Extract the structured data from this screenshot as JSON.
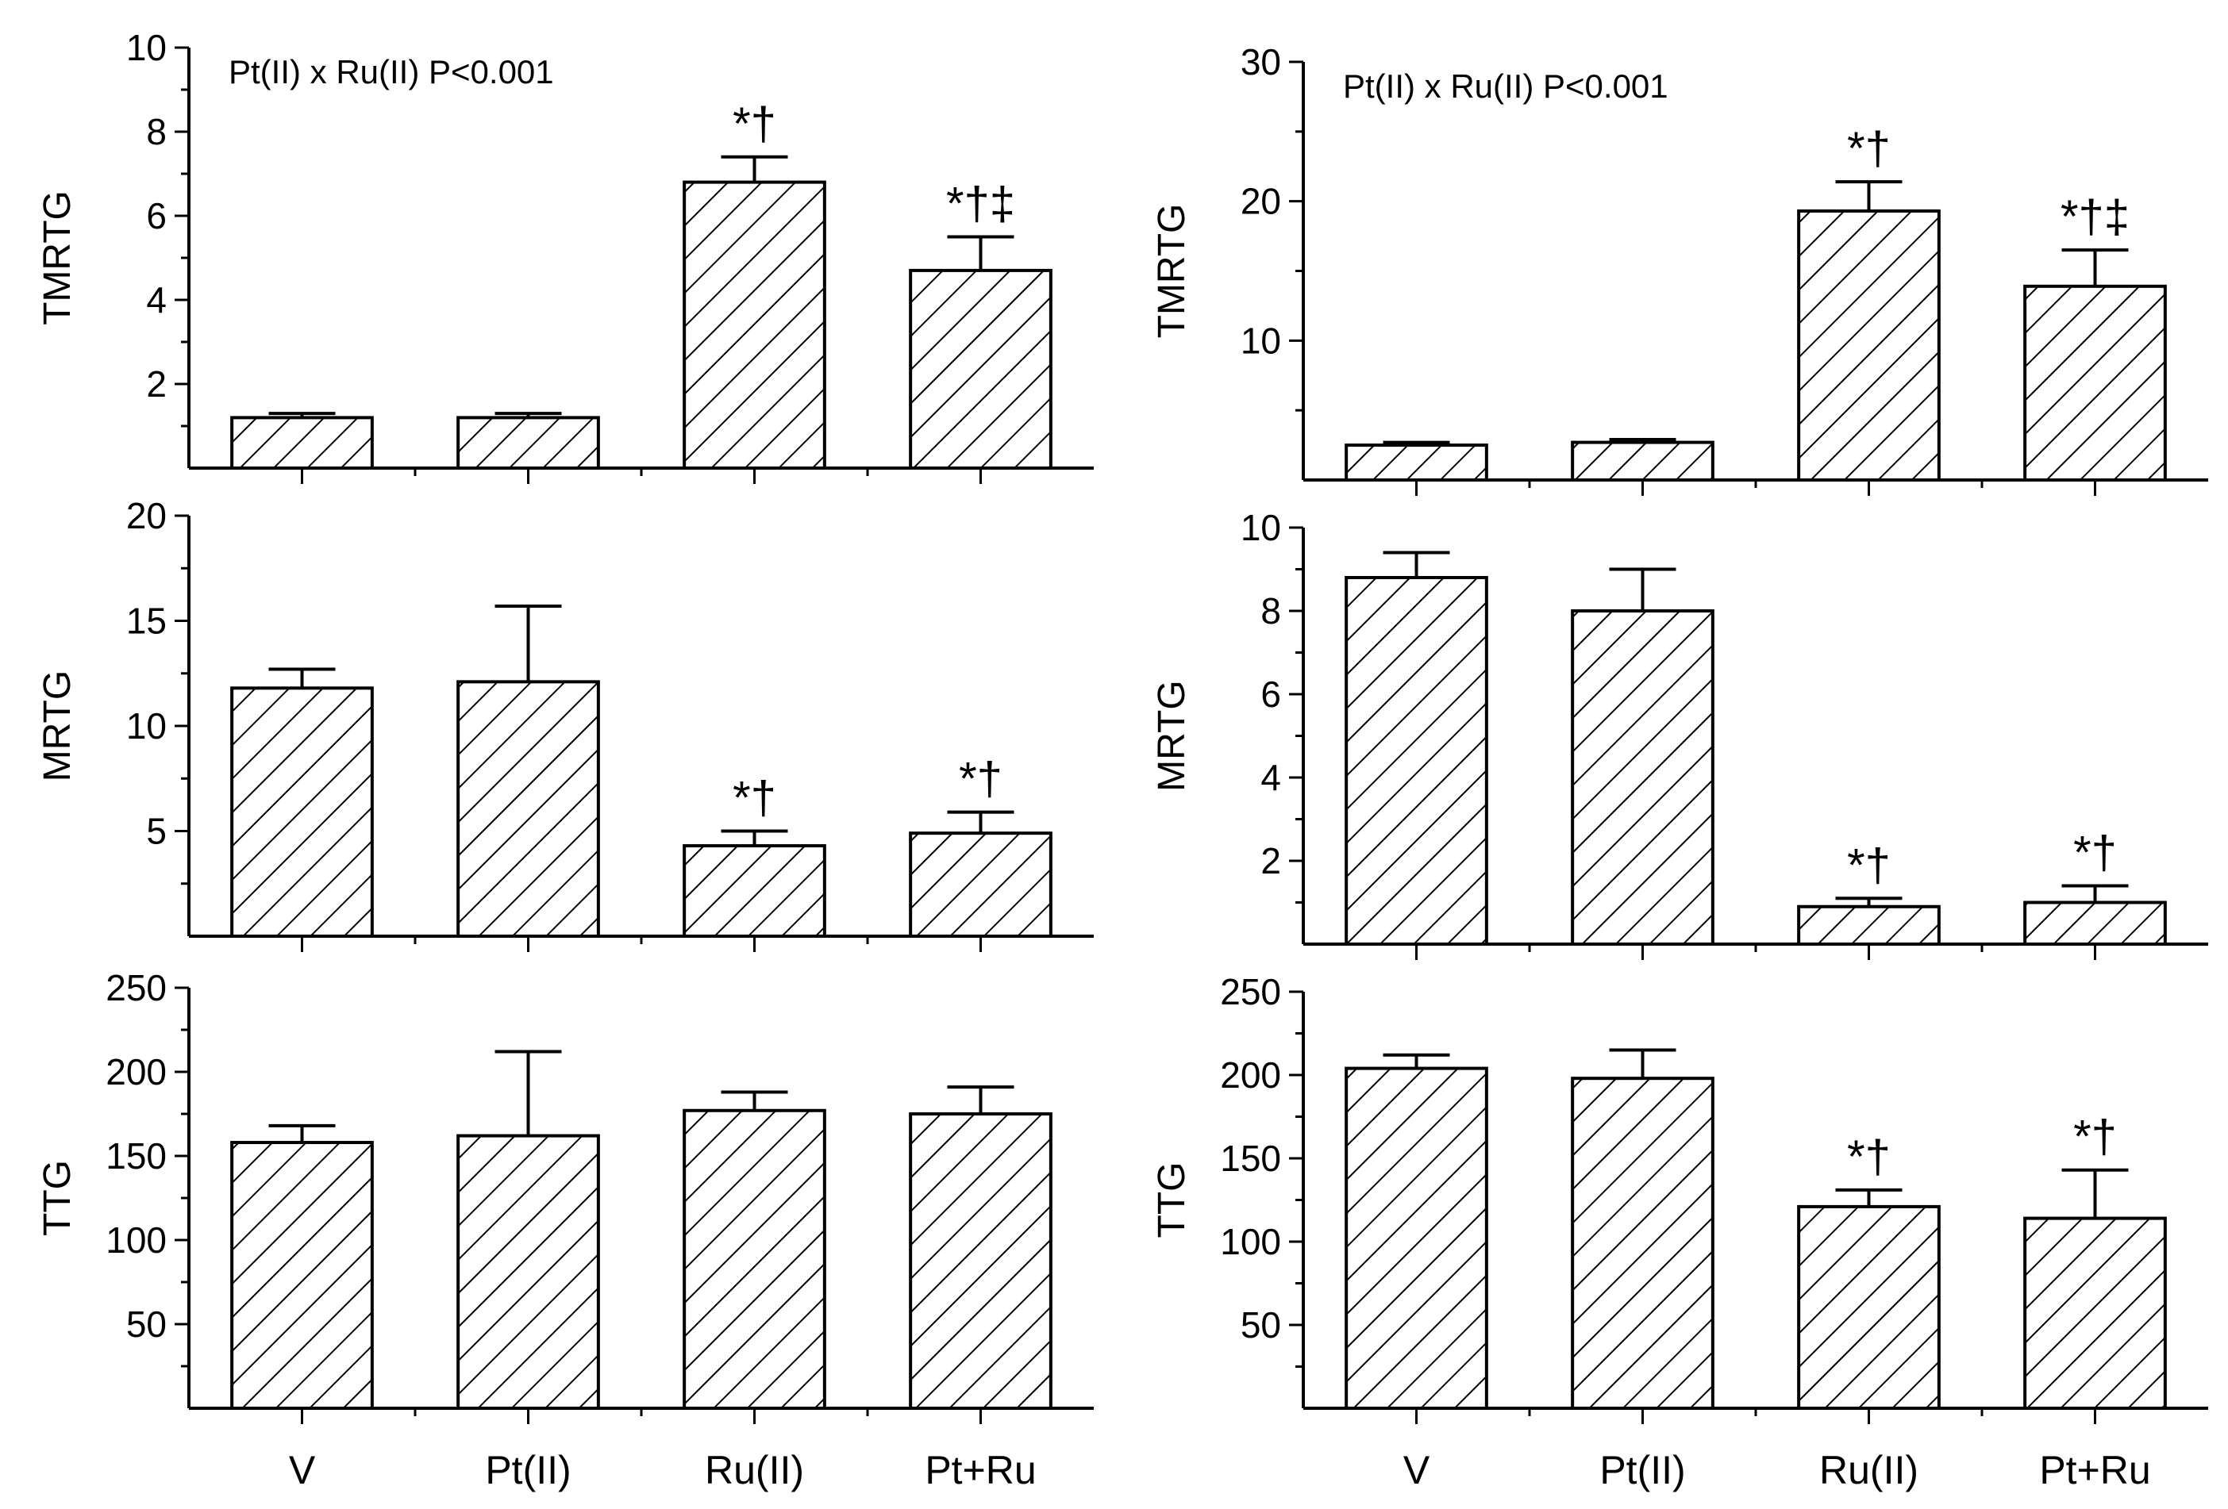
{
  "colors": {
    "axis": "#000000",
    "bar_fill": "#ffffff",
    "hatch": "#000000"
  },
  "chart_data": [
    {
      "type": "bar",
      "column": "left",
      "ylabel": "TMRTG",
      "ylim": [
        0,
        10
      ],
      "yticks": [
        2,
        4,
        6,
        8,
        10
      ],
      "categories": [
        "V",
        "Pt(II)",
        "Ru(II)",
        "Pt+Ru"
      ],
      "show_xlabels": false,
      "values": [
        1.2,
        1.2,
        6.8,
        4.7
      ],
      "errors": [
        0.1,
        0.1,
        0.6,
        0.8
      ],
      "significance": [
        "",
        "",
        "*†",
        "*†‡"
      ],
      "annotation": "Pt(II) x Ru(II) P<0.001"
    },
    {
      "type": "bar",
      "column": "left",
      "ylabel": "MRTG",
      "ylim": [
        0,
        20
      ],
      "yticks": [
        5,
        10,
        15,
        20
      ],
      "categories": [
        "V",
        "Pt(II)",
        "Ru(II)",
        "Pt+Ru"
      ],
      "show_xlabels": false,
      "values": [
        11.8,
        12.1,
        4.3,
        4.9
      ],
      "errors": [
        0.9,
        3.6,
        0.7,
        1.0
      ],
      "significance": [
        "",
        "",
        "*†",
        "*†"
      ],
      "annotation": ""
    },
    {
      "type": "bar",
      "column": "left",
      "ylabel": "TTG",
      "ylim": [
        0,
        250
      ],
      "yticks": [
        50,
        100,
        150,
        200,
        250
      ],
      "categories": [
        "V",
        "Pt(II)",
        "Ru(II)",
        "Pt+Ru"
      ],
      "show_xlabels": true,
      "values": [
        158,
        162,
        177,
        175
      ],
      "errors": [
        10,
        50,
        11,
        16
      ],
      "significance": [
        "",
        "",
        "",
        ""
      ],
      "annotation": ""
    },
    {
      "type": "bar",
      "column": "right",
      "ylabel": "TMRTG",
      "ylim": [
        0,
        30
      ],
      "yticks": [
        10,
        20,
        30
      ],
      "categories": [
        "V",
        "Pt(II)",
        "Ru(II)",
        "Pt+Ru"
      ],
      "show_xlabels": false,
      "values": [
        2.5,
        2.7,
        19.3,
        13.9
      ],
      "errors": [
        0.2,
        0.2,
        2.1,
        2.6
      ],
      "significance": [
        "",
        "",
        "*†",
        "*†‡"
      ],
      "annotation": "Pt(II) x Ru(II) P<0.001"
    },
    {
      "type": "bar",
      "column": "right",
      "ylabel": "MRTG",
      "ylim": [
        0,
        10
      ],
      "yticks": [
        2,
        4,
        6,
        8,
        10
      ],
      "categories": [
        "V",
        "Pt(II)",
        "Ru(II)",
        "Pt+Ru"
      ],
      "show_xlabels": false,
      "values": [
        8.8,
        8.0,
        0.9,
        1.0
      ],
      "errors": [
        0.6,
        1.0,
        0.2,
        0.4
      ],
      "significance": [
        "",
        "",
        "*†",
        "*†"
      ],
      "annotation": ""
    },
    {
      "type": "bar",
      "column": "right",
      "ylabel": "TTG",
      "ylim": [
        0,
        250
      ],
      "yticks": [
        50,
        100,
        150,
        200,
        250
      ],
      "categories": [
        "V",
        "Pt(II)",
        "Ru(II)",
        "Pt+Ru"
      ],
      "show_xlabels": true,
      "values": [
        204,
        198,
        121,
        114
      ],
      "errors": [
        8,
        17,
        10,
        29
      ],
      "significance": [
        "",
        "",
        "*†",
        "*†"
      ],
      "annotation": ""
    }
  ]
}
